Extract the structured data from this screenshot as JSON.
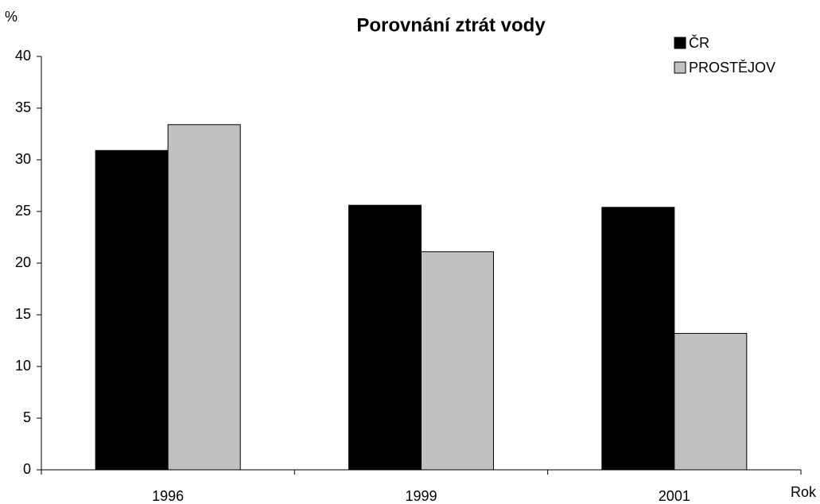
{
  "chart_data": {
    "type": "bar",
    "title": "Porovnání ztrát vody",
    "y_label": "%",
    "x_label": "Rok",
    "categories": [
      "1996",
      "1999",
      "2001"
    ],
    "series": [
      {
        "name": "ČR",
        "color": "#000000",
        "values": [
          30.9,
          25.6,
          25.4
        ]
      },
      {
        "name": "PROSTĚJOV",
        "color": "#c0c0c0",
        "values": [
          33.4,
          21.1,
          13.2
        ]
      }
    ],
    "ylim": [
      0,
      40
    ],
    "yticks": [
      0,
      5,
      10,
      15,
      20,
      25,
      30,
      35,
      40
    ],
    "grid": false,
    "legend": "top-right"
  }
}
